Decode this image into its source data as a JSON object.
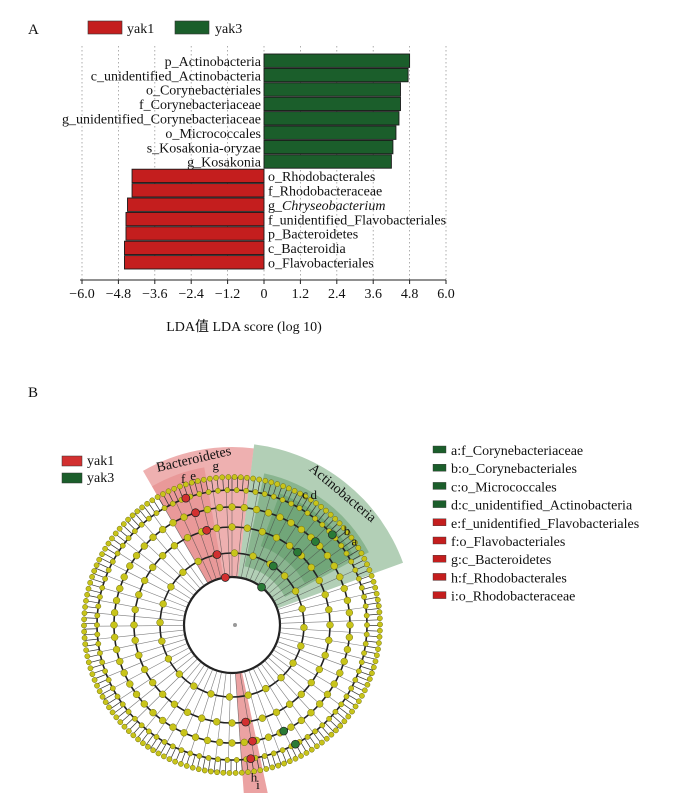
{
  "panel_a": {
    "label": "A",
    "legend": [
      {
        "name": "yak1",
        "color": "#c41e1e"
      },
      {
        "name": "yak3",
        "color": "#1b5e2b"
      }
    ],
    "xlabel": "LDA值  LDA score (log 10)"
  },
  "panel_b": {
    "label": "B",
    "legend_groups": [
      {
        "name": "yak1",
        "color": "#c41e1e"
      },
      {
        "name": "yak3",
        "color": "#1b5e2b"
      }
    ],
    "clade_labels": [
      "Bacteroidetes",
      "Actinobacteria"
    ],
    "sector_letters": [
      "g",
      "f",
      "e",
      "d",
      "c",
      "b",
      "a",
      "h",
      "i"
    ],
    "key": [
      {
        "text": "a:f_Corynebacteriaceae",
        "group": "yak3"
      },
      {
        "text": "b:o_Corynebacteriales",
        "group": "yak3"
      },
      {
        "text": "c:o_Micrococcales",
        "group": "yak3"
      },
      {
        "text": "d:c_unidentified_Actinobacteria",
        "group": "yak3"
      },
      {
        "text": "e:f_unidentified_Flavobacteriales",
        "group": "yak1"
      },
      {
        "text": "f:o_Flavobacteriales",
        "group": "yak1"
      },
      {
        "text": "g:c_Bacteroidetes",
        "group": "yak1"
      },
      {
        "text": "h:f_Rhodobacterales",
        "group": "yak1"
      },
      {
        "text": "i:o_Rhodobacteraceae",
        "group": "yak1"
      }
    ]
  },
  "chart_data": [
    {
      "type": "bar",
      "orientation": "horizontal",
      "xlabel": "LDA值  LDA score (log 10)",
      "xlim": [
        -6.0,
        6.0
      ],
      "xticks": [
        "−6.0",
        "−4.8",
        "−3.6",
        "−2.4",
        "−1.2",
        "0",
        "1.2",
        "2.4",
        "3.6",
        "4.8",
        "6.0"
      ],
      "xtick_values": [
        -6.0,
        -4.8,
        -3.6,
        -2.4,
        -1.2,
        0,
        1.2,
        2.4,
        3.6,
        4.8,
        6.0
      ],
      "grid": "vertical dotted",
      "legend_position": "top-left",
      "categories": [
        "p_Actinobacteria",
        "c_unidentified_Actinobacteria",
        "o_Corynebacteriales",
        "f_Corynebacteriaceae",
        "g_unidentified_Corynebacteriaceae",
        "o_Micrococcales",
        "s_Kosakonia-oryzae",
        "g_Kosakonia",
        "o_Rhodobacterales",
        "f_Rhodobacteraceae",
        "g_Chryseobacterium",
        "f_unidentified_Flavobacteriales",
        "p_Bacteroidetes",
        "c_Bacteroidia",
        "o_Flavobacteriales"
      ],
      "italic": [
        false,
        false,
        false,
        false,
        false,
        false,
        false,
        false,
        false,
        false,
        true,
        false,
        false,
        false,
        false
      ],
      "values": [
        4.8,
        4.75,
        4.5,
        4.5,
        4.45,
        4.35,
        4.25,
        4.2,
        -4.35,
        -4.35,
        -4.5,
        -4.55,
        -4.55,
        -4.6,
        -4.6
      ],
      "groups": [
        "yak3",
        "yak3",
        "yak3",
        "yak3",
        "yak3",
        "yak3",
        "yak3",
        "yak3",
        "yak1",
        "yak1",
        "yak1",
        "yak1",
        "yak1",
        "yak1",
        "yak1"
      ]
    }
  ]
}
